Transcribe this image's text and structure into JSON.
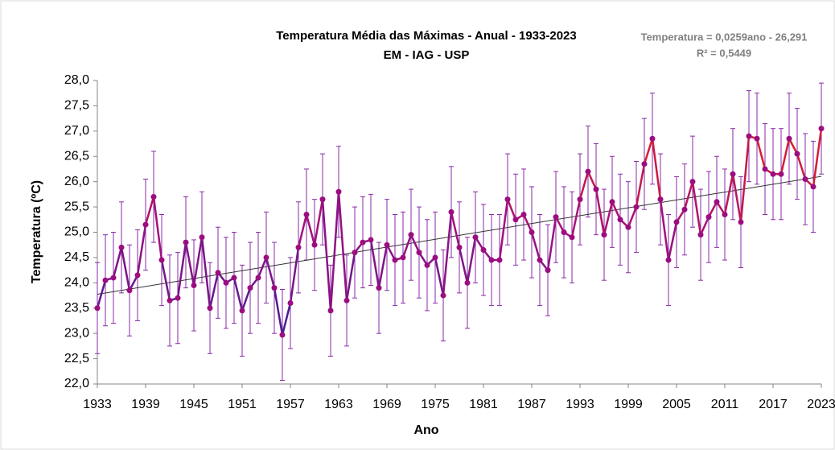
{
  "chart_data": {
    "type": "line",
    "title": "Temperatura Média das Máximas - Anual - 1933-2023",
    "subtitle": "EM - IAG - USP",
    "x_label": "Ano",
    "y_label": "Temperatura (ºC)",
    "x": [
      1933,
      1934,
      1935,
      1936,
      1937,
      1938,
      1939,
      1940,
      1941,
      1942,
      1943,
      1944,
      1945,
      1946,
      1947,
      1948,
      1949,
      1950,
      1951,
      1952,
      1953,
      1954,
      1955,
      1956,
      1957,
      1958,
      1959,
      1960,
      1961,
      1962,
      1963,
      1964,
      1965,
      1966,
      1967,
      1968,
      1969,
      1970,
      1971,
      1972,
      1973,
      1974,
      1975,
      1976,
      1977,
      1978,
      1979,
      1980,
      1981,
      1982,
      1983,
      1984,
      1985,
      1986,
      1987,
      1988,
      1989,
      1990,
      1991,
      1992,
      1993,
      1994,
      1995,
      1996,
      1997,
      1998,
      1999,
      2000,
      2001,
      2002,
      2003,
      2004,
      2005,
      2006,
      2007,
      2008,
      2009,
      2010,
      2011,
      2012,
      2013,
      2014,
      2015,
      2016,
      2017,
      2018,
      2019,
      2020,
      2021,
      2022,
      2023
    ],
    "series": [
      {
        "values": [
          23.5,
          24.05,
          24.1,
          24.7,
          23.85,
          24.15,
          25.15,
          25.7,
          24.45,
          23.65,
          23.7,
          24.8,
          23.95,
          24.9,
          23.5,
          24.2,
          24.0,
          24.1,
          23.45,
          23.9,
          24.1,
          24.5,
          23.9,
          22.97,
          23.6,
          24.7,
          25.35,
          24.75,
          25.65,
          23.45,
          25.8,
          23.65,
          24.6,
          24.8,
          24.85,
          23.9,
          24.75,
          24.45,
          24.5,
          24.95,
          24.6,
          24.35,
          24.5,
          23.75,
          25.4,
          24.7,
          24.0,
          24.9,
          24.65,
          24.45,
          24.45,
          25.65,
          25.25,
          25.35,
          25.0,
          24.45,
          24.25,
          25.3,
          25.0,
          24.9,
          25.65,
          26.2,
          25.85,
          24.95,
          25.6,
          25.25,
          25.1,
          25.5,
          26.35,
          26.85,
          25.65,
          24.45,
          25.2,
          25.45,
          26.0,
          24.95,
          25.3,
          25.6,
          25.35,
          26.15,
          25.2,
          26.9,
          26.85,
          26.25,
          26.15,
          26.15,
          26.85,
          26.55,
          26.05,
          25.9,
          27.05
        ],
        "errors": [
          0.9,
          0.9,
          0.9,
          0.9,
          0.9,
          0.9,
          0.9,
          0.9,
          0.9,
          0.9,
          0.9,
          0.9,
          0.9,
          0.9,
          0.9,
          0.9,
          0.9,
          0.9,
          0.9,
          0.9,
          0.9,
          0.9,
          0.9,
          0.9,
          0.9,
          0.9,
          0.9,
          0.9,
          0.9,
          0.9,
          0.9,
          0.9,
          0.9,
          0.9,
          0.9,
          0.9,
          0.9,
          0.9,
          0.9,
          0.9,
          0.9,
          0.9,
          0.9,
          0.9,
          0.9,
          0.9,
          0.9,
          0.9,
          0.9,
          0.9,
          0.9,
          0.9,
          0.9,
          0.9,
          0.9,
          0.9,
          0.9,
          0.9,
          0.9,
          0.9,
          0.9,
          0.9,
          0.9,
          0.9,
          0.9,
          0.9,
          0.9,
          0.9,
          0.9,
          0.9,
          0.9,
          0.9,
          0.9,
          0.9,
          0.9,
          0.9,
          0.9,
          0.9,
          0.9,
          0.9,
          0.9,
          0.9,
          0.9,
          0.9,
          0.9,
          0.9,
          0.9,
          0.9,
          0.9,
          0.9,
          0.9
        ],
        "color": "#9c0d7f",
        "error_color": "#8a2aa8",
        "line_colors": [
          "#3d1e96",
          "#a0107f",
          "#e8201c"
        ]
      }
    ],
    "trendline": {
      "slope": 0.0259,
      "intercept": -26.291,
      "color": "#333333"
    },
    "annotations": [
      "Temperatura = 0,0259ano - 26,291",
      "R² = 0,5449"
    ],
    "xlim": [
      1933,
      2023
    ],
    "xticks": [
      1933,
      1939,
      1945,
      1951,
      1957,
      1963,
      1969,
      1975,
      1981,
      1987,
      1993,
      1999,
      2005,
      2011,
      2017,
      2023
    ],
    "ylim": [
      22,
      28
    ],
    "yticks": [
      {
        "value": 22,
        "label": "22,0"
      },
      {
        "value": 22.5,
        "label": "22,5"
      },
      {
        "value": 23,
        "label": "23,0"
      },
      {
        "value": 23.5,
        "label": "23,5"
      },
      {
        "value": 24,
        "label": "24,0"
      },
      {
        "value": 24.5,
        "label": "24,5"
      },
      {
        "value": 25,
        "label": "25,0"
      },
      {
        "value": 25.5,
        "label": "25,5"
      },
      {
        "value": 26,
        "label": "26,0"
      },
      {
        "value": 26.5,
        "label": "26,5"
      },
      {
        "value": 27,
        "label": "27,0"
      },
      {
        "value": 27.5,
        "label": "27,5"
      },
      {
        "value": 28,
        "label": "28,0"
      }
    ],
    "grid": false
  }
}
